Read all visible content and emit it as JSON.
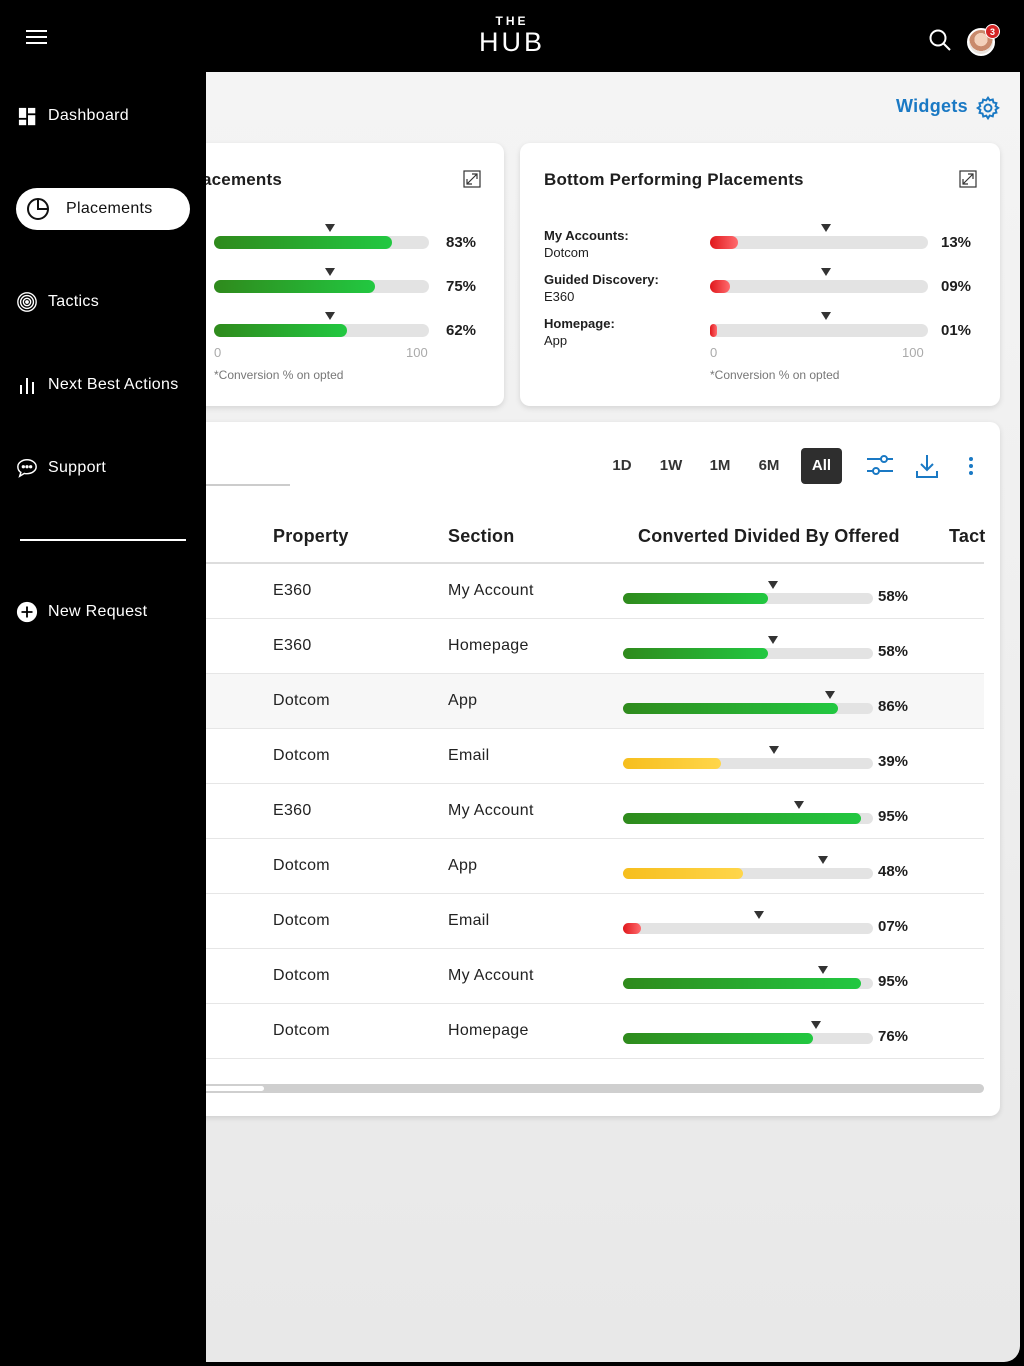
{
  "header": {
    "logo_top": "THE",
    "logo_main": "HUB",
    "notification_count": "3"
  },
  "sidebar": {
    "items": [
      {
        "label": "Dashboard",
        "icon": "dashboard-icon"
      },
      {
        "label": "Placements",
        "icon": "pie-chart-icon",
        "active": true
      },
      {
        "label": "Tactics",
        "icon": "target-icon"
      },
      {
        "label": "Next Best Actions",
        "icon": "bar-chart-icon"
      },
      {
        "label": "Support",
        "icon": "chat-bubble-icon"
      }
    ],
    "new_request": "New Request"
  },
  "widgets_label": "Widgets",
  "top_card": {
    "title": "acements",
    "gauges": [
      {
        "value": 83,
        "pct": "83%"
      },
      {
        "value": 75,
        "pct": "75%"
      },
      {
        "value": 62,
        "pct": "62%"
      }
    ],
    "axis_min": "0",
    "axis_max": "100",
    "footnote": "*Conversion % on opted"
  },
  "bottom_card": {
    "title": "Bottom Performing Placements",
    "gauges": [
      {
        "name": "My Accounts:",
        "sub": "Dotcom",
        "value": 13,
        "pct": "13%"
      },
      {
        "name": "Guided Discovery:",
        "sub": "E360",
        "value": 9,
        "pct": "09%"
      },
      {
        "name": "Homepage:",
        "sub": "App",
        "value": 1,
        "pct": "01%"
      }
    ],
    "axis_min": "0",
    "axis_max": "100",
    "footnote": "*Conversion % on opted"
  },
  "time_ranges": [
    "1D",
    "1W",
    "1M",
    "6M",
    "All"
  ],
  "active_range": "All",
  "table": {
    "columns": [
      "Property",
      "Section",
      "Converted Divided By Offered",
      "Tact"
    ],
    "rows": [
      {
        "property": "E360",
        "section": "My Account",
        "value": 58,
        "pct": "58%",
        "color": "green"
      },
      {
        "property": "E360",
        "section": "Homepage",
        "value": 58,
        "pct": "58%",
        "color": "green"
      },
      {
        "property": "Dotcom",
        "section": "App",
        "value": 86,
        "pct": "86%",
        "color": "green"
      },
      {
        "property": "Dotcom",
        "section": "Email",
        "value": 39,
        "pct": "39%",
        "color": "yellow"
      },
      {
        "property": "E360",
        "section": "My Account",
        "value": 95,
        "pct": "95%",
        "color": "green"
      },
      {
        "property": "Dotcom",
        "section": "App",
        "value": 48,
        "pct": "48%",
        "color": "yellow"
      },
      {
        "property": "Dotcom",
        "section": "Email",
        "value": 7,
        "pct": "07%",
        "color": "red"
      },
      {
        "property": "Dotcom",
        "section": "My Account",
        "value": 95,
        "pct": "95%",
        "color": "green"
      },
      {
        "property": "Dotcom",
        "section": "Homepage",
        "value": 76,
        "pct": "76%",
        "color": "green"
      }
    ]
  },
  "colors": {
    "accent": "#1a79c4",
    "good": "#22c841",
    "warning": "#f6be1d",
    "bad": "#e0171b",
    "sidebar": "#000000"
  }
}
